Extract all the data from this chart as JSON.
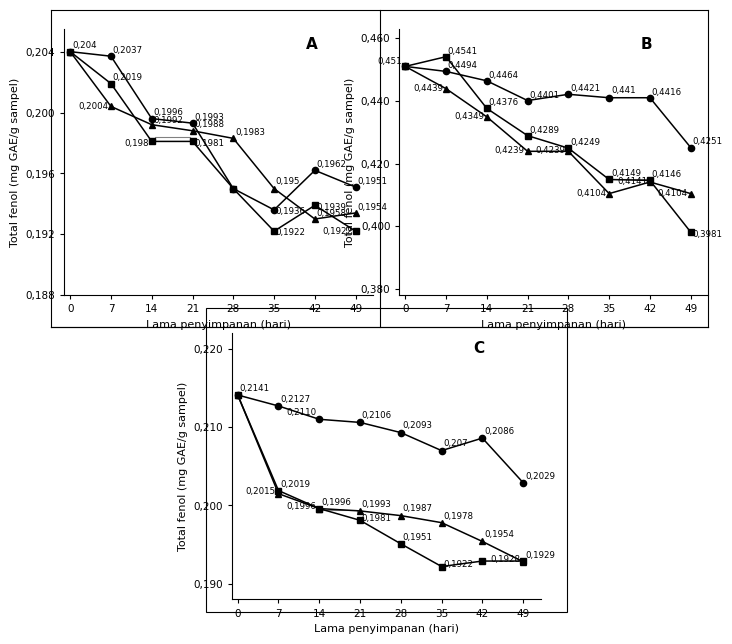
{
  "x": [
    0,
    7,
    14,
    21,
    28,
    35,
    42,
    49
  ],
  "A_circle": [
    0.204,
    0.2037,
    0.1996,
    0.1993,
    0.195,
    0.1936,
    0.1962,
    0.1951
  ],
  "A_square": [
    0.204,
    0.2019,
    0.1981,
    0.1981,
    0.195,
    0.1922,
    0.1939,
    0.1922
  ],
  "A_triangle": [
    0.204,
    0.2004,
    0.1992,
    0.1988,
    0.1983,
    0.195,
    0.193,
    0.1934
  ],
  "B_circle": [
    0.451,
    0.4494,
    0.4464,
    0.4401,
    0.4421,
    0.441,
    0.441,
    0.4251
  ],
  "B_square": [
    0.451,
    0.4541,
    0.4376,
    0.4289,
    0.4249,
    0.4149,
    0.4146,
    0.3981
  ],
  "B_triangle": [
    0.451,
    0.4439,
    0.4349,
    0.4239,
    0.4239,
    0.4104,
    0.4141,
    0.4104
  ],
  "C_circle": [
    0.2141,
    0.2127,
    0.211,
    0.2106,
    0.2093,
    0.207,
    0.2086,
    0.2029
  ],
  "C_square": [
    0.2141,
    0.2019,
    0.1996,
    0.1981,
    0.1951,
    0.1922,
    0.1929,
    0.1929
  ],
  "C_triangle": [
    0.2141,
    0.2015,
    0.1996,
    0.1993,
    0.1987,
    0.1978,
    0.1954,
    0.1928
  ],
  "ylabel": "Total fenol (mg GAE/g sampel)",
  "xlabel": "Lama penyimpanan (hari)",
  "A_ylim": [
    0.188,
    0.2055
  ],
  "A_yticks": [
    0.188,
    0.192,
    0.196,
    0.2,
    0.204
  ],
  "B_ylim": [
    0.378,
    0.463
  ],
  "B_yticks": [
    0.38,
    0.4,
    0.42,
    0.44,
    0.46
  ],
  "C_ylim": [
    0.188,
    0.222
  ],
  "C_yticks": [
    0.19,
    0.2,
    0.21,
    0.22
  ],
  "xticks": [
    0,
    7,
    14,
    21,
    28,
    35,
    42,
    49
  ],
  "lfs": 6.2,
  "afs": 8.0,
  "tfs": 7.5,
  "title_fs": 11
}
